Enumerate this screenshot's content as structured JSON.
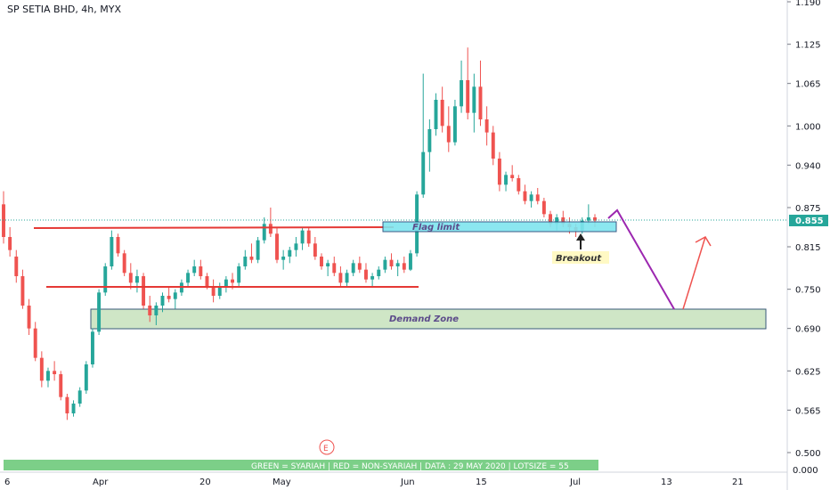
{
  "title": "SP SETIA BHD, 4h, MYX",
  "colors": {
    "up": "#26a69a",
    "down": "#ef5350",
    "price_line": "#26a69a",
    "trend": "#e53935",
    "flag_fill": "#7fe5ef",
    "demand_fill": "#cfe6c6",
    "projection_down": "#9c27b0",
    "projection_up": "#ef5350",
    "footer_fill": "#7ccf88"
  },
  "annotations": {
    "flag_label": "Flag limit",
    "demand_label": "Demand Zone",
    "breakout_label": "Breakout",
    "footer": "GREEN = SYARIAH   |   RED = NON-SYARIAH   |   DATA : 29 MAY 2020   |   LOTSIZE = 55",
    "event_marker": "E"
  },
  "chart_data": {
    "type": "candlestick",
    "title": "SP SETIA BHD, 4h, MYX",
    "ylim": [
      0.485,
      1.19
    ],
    "last_price": "0.855",
    "y_ticks": [
      "1.190",
      "1.125",
      "1.065",
      "1.000",
      "0.940",
      "0.875",
      "0.815",
      "0.750",
      "0.690",
      "0.625",
      "0.565",
      "0.500"
    ],
    "y_bottom_label": "0.000",
    "x_ticks": [
      "6",
      "Apr",
      "20",
      "May",
      "Jun",
      "15",
      "Jul",
      "13",
      "21"
    ],
    "candles": [
      [
        0.88,
        0.9,
        0.82,
        0.83
      ],
      [
        0.83,
        0.845,
        0.8,
        0.81
      ],
      [
        0.8,
        0.81,
        0.76,
        0.77
      ],
      [
        0.77,
        0.78,
        0.72,
        0.725
      ],
      [
        0.725,
        0.735,
        0.68,
        0.69
      ],
      [
        0.69,
        0.7,
        0.64,
        0.645
      ],
      [
        0.645,
        0.655,
        0.6,
        0.61
      ],
      [
        0.61,
        0.63,
        0.6,
        0.625
      ],
      [
        0.625,
        0.64,
        0.61,
        0.62
      ],
      [
        0.62,
        0.625,
        0.58,
        0.585
      ],
      [
        0.585,
        0.59,
        0.55,
        0.56
      ],
      [
        0.56,
        0.58,
        0.555,
        0.575
      ],
      [
        0.575,
        0.6,
        0.57,
        0.595
      ],
      [
        0.595,
        0.64,
        0.59,
        0.635
      ],
      [
        0.635,
        0.69,
        0.63,
        0.685
      ],
      [
        0.685,
        0.75,
        0.68,
        0.745
      ],
      [
        0.745,
        0.79,
        0.74,
        0.785
      ],
      [
        0.785,
        0.84,
        0.78,
        0.83
      ],
      [
        0.83,
        0.835,
        0.8,
        0.805
      ],
      [
        0.805,
        0.81,
        0.77,
        0.775
      ],
      [
        0.775,
        0.79,
        0.75,
        0.76
      ],
      [
        0.76,
        0.78,
        0.745,
        0.77
      ],
      [
        0.77,
        0.775,
        0.72,
        0.725
      ],
      [
        0.725,
        0.74,
        0.7,
        0.71
      ],
      [
        0.71,
        0.73,
        0.695,
        0.725
      ],
      [
        0.725,
        0.745,
        0.715,
        0.74
      ],
      [
        0.74,
        0.755,
        0.73,
        0.735
      ],
      [
        0.735,
        0.75,
        0.72,
        0.745
      ],
      [
        0.745,
        0.765,
        0.74,
        0.76
      ],
      [
        0.76,
        0.78,
        0.755,
        0.775
      ],
      [
        0.775,
        0.795,
        0.77,
        0.785
      ],
      [
        0.785,
        0.795,
        0.765,
        0.77
      ],
      [
        0.77,
        0.775,
        0.75,
        0.755
      ],
      [
        0.755,
        0.765,
        0.73,
        0.74
      ],
      [
        0.74,
        0.76,
        0.735,
        0.755
      ],
      [
        0.755,
        0.77,
        0.745,
        0.765
      ],
      [
        0.765,
        0.775,
        0.75,
        0.76
      ],
      [
        0.76,
        0.79,
        0.755,
        0.785
      ],
      [
        0.785,
        0.81,
        0.78,
        0.8
      ],
      [
        0.8,
        0.82,
        0.79,
        0.795
      ],
      [
        0.795,
        0.83,
        0.79,
        0.825
      ],
      [
        0.825,
        0.86,
        0.82,
        0.85
      ],
      [
        0.85,
        0.875,
        0.83,
        0.835
      ],
      [
        0.835,
        0.845,
        0.79,
        0.795
      ],
      [
        0.795,
        0.81,
        0.78,
        0.8
      ],
      [
        0.8,
        0.815,
        0.79,
        0.81
      ],
      [
        0.81,
        0.83,
        0.8,
        0.82
      ],
      [
        0.82,
        0.845,
        0.81,
        0.84
      ],
      [
        0.84,
        0.845,
        0.815,
        0.82
      ],
      [
        0.82,
        0.83,
        0.795,
        0.8
      ],
      [
        0.8,
        0.805,
        0.78,
        0.785
      ],
      [
        0.785,
        0.795,
        0.77,
        0.79
      ],
      [
        0.79,
        0.8,
        0.77,
        0.775
      ],
      [
        0.775,
        0.785,
        0.755,
        0.76
      ],
      [
        0.76,
        0.78,
        0.755,
        0.775
      ],
      [
        0.775,
        0.795,
        0.77,
        0.79
      ],
      [
        0.79,
        0.8,
        0.775,
        0.78
      ],
      [
        0.78,
        0.79,
        0.76,
        0.765
      ],
      [
        0.765,
        0.775,
        0.755,
        0.77
      ],
      [
        0.77,
        0.785,
        0.765,
        0.78
      ],
      [
        0.78,
        0.8,
        0.775,
        0.795
      ],
      [
        0.795,
        0.805,
        0.78,
        0.785
      ],
      [
        0.785,
        0.795,
        0.77,
        0.79
      ],
      [
        0.79,
        0.8,
        0.775,
        0.78
      ],
      [
        0.78,
        0.81,
        0.778,
        0.805
      ],
      [
        0.805,
        0.9,
        0.8,
        0.895
      ],
      [
        0.895,
        1.08,
        0.89,
        0.96
      ],
      [
        0.96,
        1.01,
        0.93,
        0.995
      ],
      [
        0.995,
        1.05,
        0.985,
        1.04
      ],
      [
        1.04,
        1.06,
        0.99,
        1.0
      ],
      [
        1.0,
        1.03,
        0.96,
        0.975
      ],
      [
        0.975,
        1.04,
        0.97,
        1.03
      ],
      [
        1.03,
        1.1,
        1.02,
        1.07
      ],
      [
        1.07,
        1.12,
        1.01,
        1.02
      ],
      [
        1.02,
        1.08,
        0.99,
        1.06
      ],
      [
        1.06,
        1.1,
        1.0,
        1.01
      ],
      [
        1.01,
        1.03,
        0.97,
        0.99
      ],
      [
        0.99,
        1.0,
        0.94,
        0.95
      ],
      [
        0.95,
        0.96,
        0.9,
        0.91
      ],
      [
        0.91,
        0.93,
        0.9,
        0.925
      ],
      [
        0.925,
        0.94,
        0.915,
        0.92
      ],
      [
        0.92,
        0.925,
        0.895,
        0.9
      ],
      [
        0.9,
        0.91,
        0.88,
        0.885
      ],
      [
        0.885,
        0.9,
        0.875,
        0.895
      ],
      [
        0.895,
        0.905,
        0.88,
        0.885
      ],
      [
        0.885,
        0.89,
        0.86,
        0.865
      ],
      [
        0.865,
        0.87,
        0.845,
        0.85
      ],
      [
        0.85,
        0.865,
        0.84,
        0.86
      ],
      [
        0.86,
        0.87,
        0.845,
        0.85
      ],
      [
        0.85,
        0.86,
        0.835,
        0.845
      ],
      [
        0.845,
        0.85,
        0.83,
        0.84
      ],
      [
        0.84,
        0.86,
        0.835,
        0.855
      ],
      [
        0.855,
        0.88,
        0.85,
        0.86
      ],
      [
        0.86,
        0.865,
        0.845,
        0.855
      ]
    ],
    "lines": [
      {
        "name": "upper-trend",
        "x0": 14,
        "y0": 0.84,
        "x1": 64,
        "y1": 0.841
      },
      {
        "name": "lower-trend",
        "x0": 18,
        "y0": 0.752,
        "x1": 68,
        "y1": 0.752
      }
    ]
  }
}
